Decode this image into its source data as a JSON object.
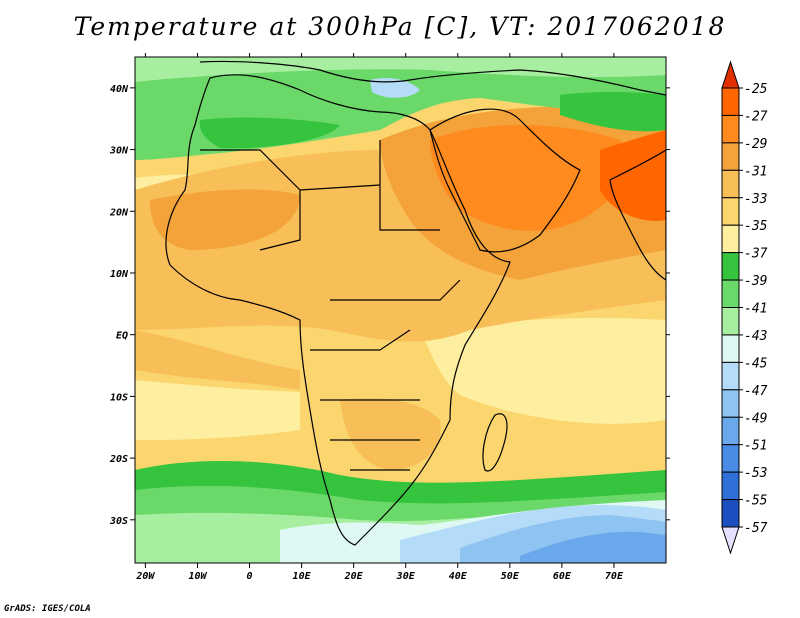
{
  "title": "Temperature at 300hPa [C], VT: 2017062018",
  "footer": "GrADS: IGES/COLA",
  "map": {
    "lon_range": [
      -22,
      80
    ],
    "lat_range": [
      -37,
      45
    ],
    "x_ticks": [
      {
        "lon": -20,
        "label": "20W"
      },
      {
        "lon": -10,
        "label": "10W"
      },
      {
        "lon": 0,
        "label": "0"
      },
      {
        "lon": 10,
        "label": "10E"
      },
      {
        "lon": 20,
        "label": "20E"
      },
      {
        "lon": 30,
        "label": "30E"
      },
      {
        "lon": 40,
        "label": "40E"
      },
      {
        "lon": 50,
        "label": "50E"
      },
      {
        "lon": 60,
        "label": "60E"
      },
      {
        "lon": 70,
        "label": "70E"
      }
    ],
    "y_ticks": [
      {
        "lat": 40,
        "label": "40N"
      },
      {
        "lat": 30,
        "label": "30N"
      },
      {
        "lat": 20,
        "label": "20N"
      },
      {
        "lat": 10,
        "label": "10N"
      },
      {
        "lat": 0,
        "label": "EQ"
      },
      {
        "lat": -10,
        "label": "10S"
      },
      {
        "lat": -20,
        "label": "20S"
      },
      {
        "lat": -30,
        "label": "30S"
      }
    ]
  },
  "colorbar": {
    "levels": [
      {
        "label": "-25",
        "color": "#ff6600"
      },
      {
        "label": "-27",
        "color": "#ff8a1e"
      },
      {
        "label": "-29",
        "color": "#f4a23a"
      },
      {
        "label": "-31",
        "color": "#f8be58"
      },
      {
        "label": "-33",
        "color": "#fbd66f"
      },
      {
        "label": "-35",
        "color": "#fdeea0"
      },
      {
        "label": "-37",
        "color": "#36c43e"
      },
      {
        "label": "-39",
        "color": "#6ad96a"
      },
      {
        "label": "-41",
        "color": "#a7eea0"
      },
      {
        "label": "-43",
        "color": "#dff8f4"
      },
      {
        "label": "-45",
        "color": "#b4dcf8"
      },
      {
        "label": "-47",
        "color": "#8fc4f2"
      },
      {
        "label": "-49",
        "color": "#6aa8ec"
      },
      {
        "label": "-51",
        "color": "#4a8be6"
      },
      {
        "label": "-53",
        "color": "#2e6fd8"
      },
      {
        "label": "-55",
        "color": "#1c4fc0"
      },
      {
        "label": "-57",
        "color": "#0c2a8c"
      }
    ],
    "top_arrow_color": "#e03000",
    "bottom_arrow_color": "#e8e0ff"
  }
}
